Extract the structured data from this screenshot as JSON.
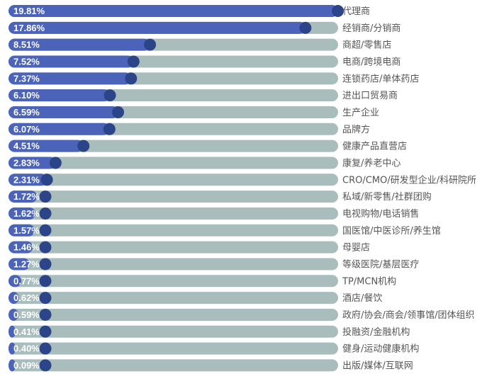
{
  "chart_data": {
    "type": "bar",
    "orientation": "horizontal",
    "value_format": "percent",
    "xlim": [
      0,
      20
    ],
    "categories": [
      "代理商",
      "经销商/分销商",
      "商超/零售店",
      "电商/跨境电商",
      "连锁药店/单体药店",
      "进出口贸易商",
      "生产企业",
      "品牌方",
      "健康产品直营店",
      "康复/养老中心",
      "CRO/CMO/研发型企业/科研院所",
      "私域/新零售/社群团购",
      "电视购物/电话销售",
      "国医馆/中医诊所/养生馆",
      "母婴店",
      "等级医院/基层医疗",
      "TP/MCN机构",
      "酒店/餐饮",
      "政府/协会/商会/领事馆/团体组织",
      "投融资/金融机构",
      "健身/运动健康机构",
      "出版/媒体/互联网"
    ],
    "labels": [
      "19.81%",
      "17.86%",
      "8.51%",
      "7.52%",
      "7.37%",
      "6.10%",
      "6.59%",
      "6.07%",
      "4.51%",
      "2.83%",
      "2.31%",
      "1.72%",
      "1.62%",
      "1.57%",
      "1.46%",
      "1.27%",
      "0.77%",
      "0.62%",
      "0.59%",
      "0.41%",
      "0.40%",
      "0.09%"
    ],
    "values": [
      19.81,
      17.86,
      8.51,
      7.52,
      7.37,
      6.1,
      6.59,
      6.07,
      4.51,
      2.83,
      2.31,
      1.72,
      1.62,
      1.57,
      1.46,
      1.27,
      0.77,
      0.62,
      0.59,
      0.41,
      0.4,
      0.09
    ],
    "colors": {
      "fill": "#4b63b8",
      "track": "#a9bdbd",
      "knob": "#2c4589",
      "value_text": "#ffffff",
      "category_text": "#555555"
    },
    "grid": false,
    "legend": "none"
  }
}
